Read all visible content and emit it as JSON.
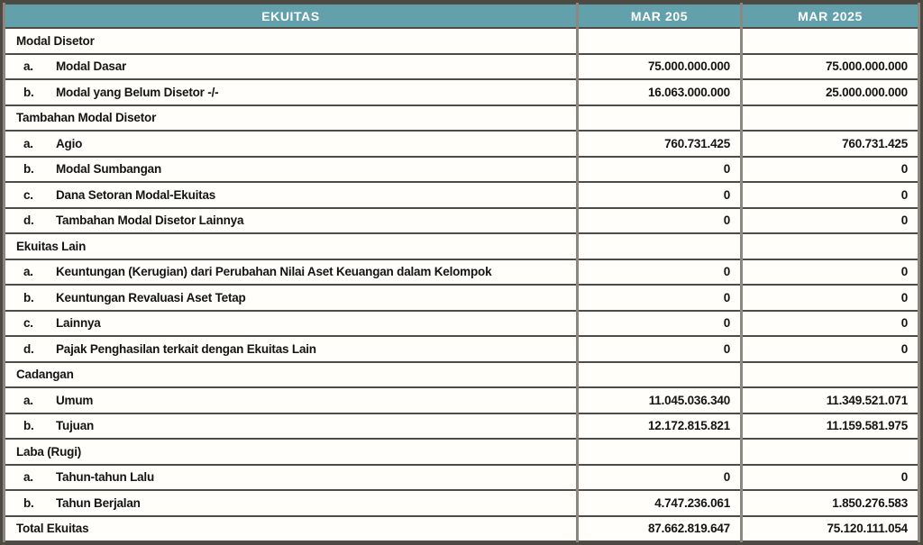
{
  "colors": {
    "header_bg": "#62a1ac",
    "header_text": "#ffffff",
    "border_dark": "#4f4c45",
    "border_gray": "#8d877f",
    "cell_bg": "#fffefa",
    "text": "#141414"
  },
  "table": {
    "header": {
      "col_label": "EKUITAS",
      "col_period1": "MAR 205",
      "col_period2": "MAR 2025"
    },
    "rows": [
      {
        "type": "section",
        "letter": "",
        "label": "Modal Disetor",
        "v1": "",
        "v2": ""
      },
      {
        "type": "item",
        "letter": "a.",
        "label": "Modal Dasar",
        "v1": "75.000.000.000",
        "v2": "75.000.000.000"
      },
      {
        "type": "item",
        "letter": "b.",
        "label": "Modal yang Belum Disetor -/-",
        "v1": "16.063.000.000",
        "v2": "25.000.000.000"
      },
      {
        "type": "section",
        "letter": "",
        "label": "Tambahan Modal Disetor",
        "v1": "",
        "v2": ""
      },
      {
        "type": "item",
        "letter": "a.",
        "label": "Agio",
        "v1": "760.731.425",
        "v2": "760.731.425"
      },
      {
        "type": "item",
        "letter": "b.",
        "label": "Modal Sumbangan",
        "v1": "0",
        "v2": "0"
      },
      {
        "type": "item",
        "letter": "c.",
        "label": "Dana Setoran Modal-Ekuitas",
        "v1": "0",
        "v2": "0"
      },
      {
        "type": "item",
        "letter": "d.",
        "label": "Tambahan Modal Disetor Lainnya",
        "v1": "0",
        "v2": "0"
      },
      {
        "type": "section",
        "letter": "",
        "label": "Ekuitas Lain",
        "v1": "",
        "v2": ""
      },
      {
        "type": "item",
        "letter": "a.",
        "label": "Keuntungan (Kerugian) dari Perubahan Nilai Aset Keuangan dalam Kelompok",
        "v1": "0",
        "v2": "0"
      },
      {
        "type": "item",
        "letter": "b.",
        "label": "Keuntungan Revaluasi Aset Tetap",
        "v1": "0",
        "v2": "0"
      },
      {
        "type": "item",
        "letter": "c.",
        "label": "Lainnya",
        "v1": "0",
        "v2": "0"
      },
      {
        "type": "item",
        "letter": "d.",
        "label": "Pajak Penghasilan terkait dengan Ekuitas Lain",
        "v1": "0",
        "v2": "0"
      },
      {
        "type": "section",
        "letter": "",
        "label": "Cadangan",
        "v1": "",
        "v2": ""
      },
      {
        "type": "item",
        "letter": "a.",
        "label": "Umum",
        "v1": "11.045.036.340",
        "v2": "11.349.521.071"
      },
      {
        "type": "item",
        "letter": "b.",
        "label": "Tujuan",
        "v1": "12.172.815.821",
        "v2": "11.159.581.975"
      },
      {
        "type": "section",
        "letter": "",
        "label": "Laba (Rugi)",
        "v1": "",
        "v2": ""
      },
      {
        "type": "item",
        "letter": "a.",
        "label": "Tahun-tahun Lalu",
        "v1": "0",
        "v2": "0"
      },
      {
        "type": "item",
        "letter": "b.",
        "label": "Tahun Berjalan",
        "v1": "4.747.236.061",
        "v2": "1.850.276.583"
      },
      {
        "type": "total",
        "letter": "",
        "label": "Total Ekuitas",
        "v1": "87.662.819.647",
        "v2": "75.120.111.054"
      }
    ]
  }
}
